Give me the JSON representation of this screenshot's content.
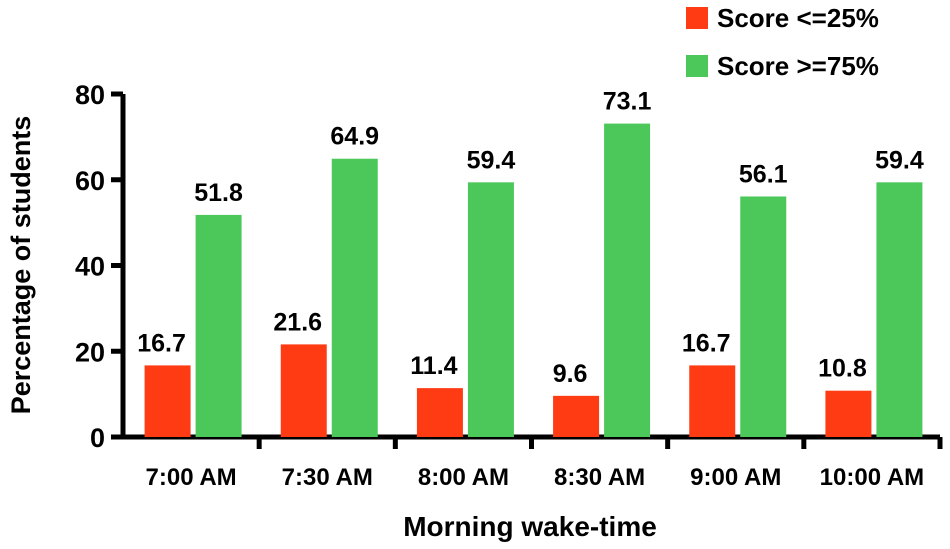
{
  "chart_data": {
    "type": "bar",
    "categories": [
      "7:00 AM",
      "7:30 AM",
      "8:00 AM",
      "8:30 AM",
      "9:00 AM",
      "10:00 AM"
    ],
    "series": [
      {
        "name": "Score <=25%",
        "color": "#ff3b14",
        "values": [
          16.7,
          21.6,
          11.4,
          9.6,
          16.7,
          10.8
        ]
      },
      {
        "name": "Score >=75%",
        "color": "#4cc85a",
        "values": [
          51.8,
          64.9,
          59.4,
          73.1,
          56.1,
          59.4
        ]
      }
    ],
    "title": "",
    "xlabel": "Morning wake-time",
    "ylabel": "Percentage of students",
    "ylim": [
      0,
      80
    ],
    "yticks": [
      0,
      20,
      40,
      60,
      80
    ],
    "data_labels": true,
    "grid": false,
    "legend_position": "top-right"
  }
}
